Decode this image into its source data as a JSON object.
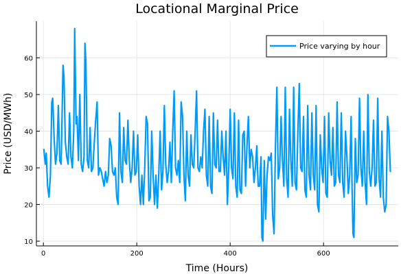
{
  "chart_data": {
    "type": "line",
    "title": "Locational Marginal Price",
    "xlabel": "Time (Hours)",
    "ylabel": "Price (USD/MWh)",
    "xlim": [
      -15,
      760
    ],
    "ylim": [
      8.7,
      70
    ],
    "xticks": [
      0,
      200,
      400,
      600
    ],
    "yticks": [
      10,
      20,
      30,
      40,
      50,
      60
    ],
    "grid": true,
    "legend_position": "top-right",
    "series": [
      {
        "name": "Price varying by hour",
        "color": "#009af9",
        "points": [
          [
            1,
            35
          ],
          [
            4,
            31
          ],
          [
            6,
            34
          ],
          [
            9,
            25
          ],
          [
            12,
            22
          ],
          [
            15,
            28
          ],
          [
            18,
            48
          ],
          [
            20,
            49
          ],
          [
            23,
            38
          ],
          [
            26,
            31
          ],
          [
            29,
            34
          ],
          [
            32,
            47
          ],
          [
            35,
            32
          ],
          [
            38,
            31
          ],
          [
            42,
            58
          ],
          [
            44,
            55
          ],
          [
            47,
            37
          ],
          [
            50,
            33
          ],
          [
            53,
            31
          ],
          [
            56,
            45
          ],
          [
            59,
            33
          ],
          [
            62,
            30
          ],
          [
            65,
            40
          ],
          [
            67,
            68
          ],
          [
            70,
            42
          ],
          [
            72,
            44
          ],
          [
            75,
            32
          ],
          [
            78,
            50
          ],
          [
            81,
            31
          ],
          [
            84,
            29
          ],
          [
            87,
            33
          ],
          [
            89,
            64
          ],
          [
            91,
            59
          ],
          [
            94,
            32
          ],
          [
            97,
            30
          ],
          [
            100,
            41
          ],
          [
            103,
            29
          ],
          [
            106,
            30
          ],
          [
            109,
            37
          ],
          [
            112,
            43
          ],
          [
            115,
            48
          ],
          [
            118,
            28
          ],
          [
            121,
            30
          ],
          [
            124,
            29
          ],
          [
            127,
            27
          ],
          [
            130,
            25
          ],
          [
            133,
            29
          ],
          [
            136,
            26
          ],
          [
            139,
            28
          ],
          [
            142,
            38
          ],
          [
            145,
            36
          ],
          [
            148,
            29
          ],
          [
            151,
            28
          ],
          [
            154,
            30
          ],
          [
            157,
            22
          ],
          [
            160,
            20
          ],
          [
            163,
            45
          ],
          [
            166,
            29
          ],
          [
            169,
            26
          ],
          [
            172,
            41
          ],
          [
            175,
            32
          ],
          [
            178,
            31
          ],
          [
            181,
            43
          ],
          [
            184,
            32
          ],
          [
            187,
            26
          ],
          [
            190,
            30
          ],
          [
            193,
            40
          ],
          [
            196,
            28
          ],
          [
            199,
            29
          ],
          [
            202,
            39
          ],
          [
            205,
            25
          ],
          [
            208,
            20
          ],
          [
            211,
            28
          ],
          [
            214,
            20
          ],
          [
            217,
            30
          ],
          [
            220,
            44
          ],
          [
            223,
            42
          ],
          [
            226,
            21
          ],
          [
            229,
            22
          ],
          [
            232,
            40
          ],
          [
            235,
            28
          ],
          [
            238,
            20
          ],
          [
            241,
            28
          ],
          [
            244,
            19
          ],
          [
            247,
            28
          ],
          [
            250,
            40
          ],
          [
            253,
            24
          ],
          [
            256,
            29
          ],
          [
            259,
            47
          ],
          [
            262,
            31
          ],
          [
            265,
            26
          ],
          [
            268,
            29
          ],
          [
            271,
            37
          ],
          [
            274,
            26
          ],
          [
            277,
            40
          ],
          [
            280,
            51
          ],
          [
            283,
            30
          ],
          [
            286,
            28
          ],
          [
            289,
            32
          ],
          [
            292,
            26
          ],
          [
            295,
            48
          ],
          [
            298,
            44
          ],
          [
            301,
            28
          ],
          [
            304,
            21
          ],
          [
            307,
            40
          ],
          [
            310,
            28
          ],
          [
            313,
            25
          ],
          [
            316,
            39
          ],
          [
            319,
            31
          ],
          [
            322,
            30
          ],
          [
            325,
            40
          ],
          [
            328,
            51
          ],
          [
            331,
            30
          ],
          [
            334,
            29
          ],
          [
            337,
            33
          ],
          [
            340,
            30
          ],
          [
            343,
            40
          ],
          [
            346,
            46
          ],
          [
            349,
            28
          ],
          [
            352,
            25
          ],
          [
            355,
            44
          ],
          [
            358,
            25
          ],
          [
            361,
            23
          ],
          [
            364,
            45
          ],
          [
            367,
            31
          ],
          [
            370,
            30
          ],
          [
            373,
            43
          ],
          [
            376,
            29
          ],
          [
            379,
            29
          ],
          [
            382,
            40
          ],
          [
            385,
            33
          ],
          [
            388,
            28
          ],
          [
            391,
            40
          ],
          [
            394,
            20
          ],
          [
            397,
            30
          ],
          [
            400,
            46
          ],
          [
            403,
            30
          ],
          [
            406,
            27
          ],
          [
            409,
            45
          ],
          [
            412,
            25
          ],
          [
            415,
            22
          ],
          [
            418,
            43
          ],
          [
            421,
            24
          ],
          [
            424,
            23
          ],
          [
            427,
            39
          ],
          [
            430,
            40
          ],
          [
            433,
            25
          ],
          [
            436,
            36
          ],
          [
            439,
            44
          ],
          [
            442,
            30
          ],
          [
            445,
            35
          ],
          [
            448,
            33
          ],
          [
            451,
            26
          ],
          [
            454,
            30
          ],
          [
            457,
            36
          ],
          [
            460,
            25
          ],
          [
            463,
            25
          ],
          [
            466,
            33
          ],
          [
            468,
            11
          ],
          [
            470,
            10
          ],
          [
            473,
            32
          ],
          [
            476,
            16
          ],
          [
            479,
            28
          ],
          [
            482,
            33
          ],
          [
            485,
            32
          ],
          [
            488,
            34
          ],
          [
            491,
            17
          ],
          [
            494,
            12
          ],
          [
            497,
            36
          ],
          [
            500,
            52
          ],
          [
            503,
            27
          ],
          [
            506,
            30
          ],
          [
            509,
            44
          ],
          [
            512,
            32
          ],
          [
            515,
            25
          ],
          [
            518,
            52
          ],
          [
            521,
            27
          ],
          [
            524,
            22
          ],
          [
            527,
            46
          ],
          [
            530,
            32
          ],
          [
            533,
            25
          ],
          [
            536,
            52
          ],
          [
            539,
            26
          ],
          [
            542,
            24
          ],
          [
            545,
            40
          ],
          [
            548,
            53
          ],
          [
            551,
            30
          ],
          [
            554,
            29
          ],
          [
            557,
            44
          ],
          [
            560,
            24
          ],
          [
            563,
            22
          ],
          [
            566,
            47
          ],
          [
            569,
            28
          ],
          [
            572,
            24
          ],
          [
            575,
            45
          ],
          [
            578,
            28
          ],
          [
            581,
            24
          ],
          [
            584,
            47
          ],
          [
            587,
            20
          ],
          [
            590,
            18
          ],
          [
            593,
            39
          ],
          [
            596,
            30
          ],
          [
            599,
            26
          ],
          [
            602,
            44
          ],
          [
            605,
            23
          ],
          [
            608,
            22
          ],
          [
            611,
            45
          ],
          [
            614,
            32
          ],
          [
            617,
            28
          ],
          [
            620,
            41
          ],
          [
            623,
            25
          ],
          [
            626,
            26
          ],
          [
            629,
            48
          ],
          [
            632,
            28
          ],
          [
            635,
            26
          ],
          [
            638,
            45
          ],
          [
            641,
            26
          ],
          [
            644,
            22
          ],
          [
            647,
            40
          ],
          [
            650,
            33
          ],
          [
            653,
            23
          ],
          [
            656,
            28
          ],
          [
            659,
            44
          ],
          [
            661,
            25
          ],
          [
            663,
            12
          ],
          [
            665,
            11
          ],
          [
            668,
            38
          ],
          [
            671,
            26
          ],
          [
            674,
            28
          ],
          [
            677,
            49
          ],
          [
            680,
            30
          ],
          [
            683,
            25
          ],
          [
            686,
            40
          ],
          [
            689,
            26
          ],
          [
            692,
            20
          ],
          [
            695,
            50
          ],
          [
            698,
            29
          ],
          [
            701,
            25
          ],
          [
            704,
            30
          ],
          [
            707,
            43
          ],
          [
            710,
            25
          ],
          [
            713,
            26
          ],
          [
            716,
            49
          ],
          [
            719,
            27
          ],
          [
            722,
            22
          ],
          [
            725,
            40
          ],
          [
            728,
            22
          ],
          [
            731,
            18
          ],
          [
            734,
            20
          ],
          [
            737,
            44
          ],
          [
            740,
            40
          ],
          [
            743,
            29
          ]
        ]
      }
    ]
  }
}
